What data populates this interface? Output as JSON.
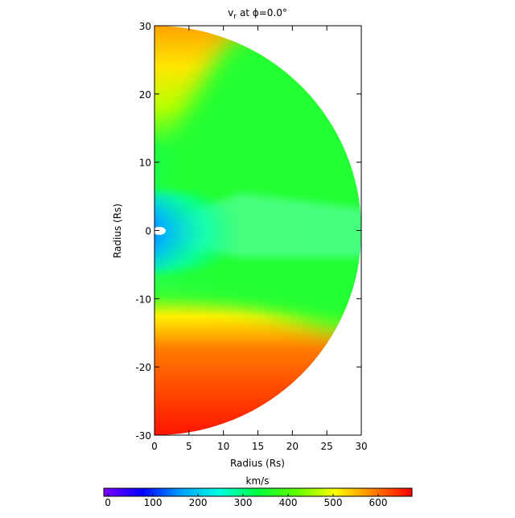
{
  "chart_data": {
    "type": "polar-heatmap",
    "title": {
      "symbol": "v",
      "subscript": "r",
      "text": "at ϕ=0.0°"
    },
    "x_label": "Radius (Rs)",
    "y_label": "Radius (Rs)",
    "xlim": [
      0,
      30
    ],
    "ylim": [
      -30,
      30
    ],
    "xticks": [
      0,
      5,
      10,
      15,
      20,
      25,
      30
    ],
    "yticks": [
      -30,
      -20,
      -10,
      0,
      10,
      20,
      30
    ],
    "colorbar": {
      "label": "km/s",
      "lim": [
        -9,
        675
      ],
      "ticks": [
        0,
        100,
        200,
        300,
        400,
        500,
        600
      ],
      "colors": [
        "#8000ff",
        "#0000ff",
        "#00a0ff",
        "#00ffe0",
        "#00ff40",
        "#60ff00",
        "#ffff00",
        "#ff8000",
        "#ff0000"
      ]
    }
  }
}
